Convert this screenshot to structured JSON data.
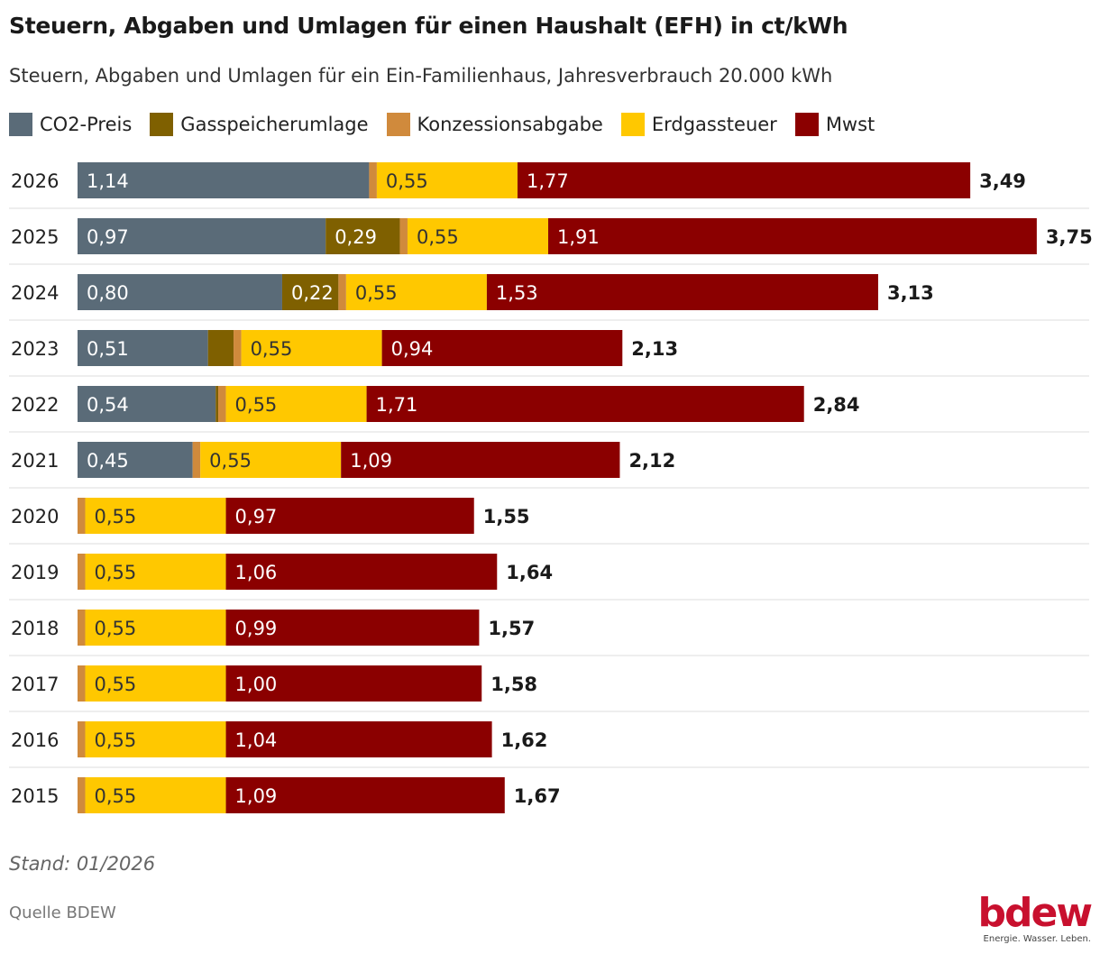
{
  "chart_data": {
    "type": "bar",
    "orientation": "horizontal",
    "stacked": true,
    "title": "Steuern, Abgaben und Umlagen für einen Haushalt (EFH) in ct/kWh",
    "subtitle": "Steuern, Abgaben und Umlagen für ein Ein-Familienhaus, Jahresverbrauch 20.000 kWh",
    "categories": [
      "2026",
      "2025",
      "2024",
      "2023",
      "2022",
      "2021",
      "2020",
      "2019",
      "2018",
      "2017",
      "2016",
      "2015"
    ],
    "series": [
      {
        "name": "CO2-Preis",
        "color": "#5a6b78",
        "values": [
          1.14,
          0.97,
          0.8,
          0.51,
          0.54,
          0.45,
          0,
          0,
          0,
          0,
          0,
          0
        ]
      },
      {
        "name": "Gasspeicherumlage",
        "color": "#7f6000",
        "values": [
          0,
          0.29,
          0.22,
          0.1,
          0.01,
          0,
          0,
          0,
          0,
          0,
          0,
          0
        ]
      },
      {
        "name": "Konzessionsabgabe",
        "color": "#d08a3c",
        "values": [
          0.03,
          0.03,
          0.03,
          0.03,
          0.03,
          0.03,
          0.03,
          0.03,
          0.03,
          0.03,
          0.03,
          0.03
        ]
      },
      {
        "name": "Erdgassteuer",
        "color": "#ffc800",
        "values": [
          0.55,
          0.55,
          0.55,
          0.55,
          0.55,
          0.55,
          0.55,
          0.55,
          0.55,
          0.55,
          0.55,
          0.55
        ]
      },
      {
        "name": "Mwst",
        "color": "#8b0000",
        "values": [
          1.77,
          1.91,
          1.53,
          0.94,
          1.71,
          1.09,
          0.97,
          1.06,
          0.99,
          1.0,
          1.04,
          1.09
        ]
      }
    ],
    "totals": [
      3.49,
      3.75,
      3.13,
      2.13,
      2.84,
      2.12,
      1.55,
      1.64,
      1.57,
      1.58,
      1.62,
      1.67
    ],
    "legend_position": "top-left",
    "grid": false
  },
  "footer": {
    "stand": "Stand: 01/2026",
    "source": "Quelle BDEW"
  },
  "logo": {
    "word": "bdew",
    "tagline": "Energie. Wasser. Leben."
  }
}
